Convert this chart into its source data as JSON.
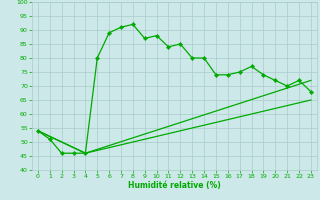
{
  "title": "",
  "xlabel": "Humidité relative (%)",
  "ylabel": "",
  "bg_color": "#cce8e8",
  "grid_color": "#aacccc",
  "line_color": "#00aa00",
  "xlim": [
    -0.5,
    23.5
  ],
  "ylim": [
    40,
    100
  ],
  "yticks": [
    40,
    45,
    50,
    55,
    60,
    65,
    70,
    75,
    80,
    85,
    90,
    95,
    100
  ],
  "xticks": [
    0,
    1,
    2,
    3,
    4,
    5,
    6,
    7,
    8,
    9,
    10,
    11,
    12,
    13,
    14,
    15,
    16,
    17,
    18,
    19,
    20,
    21,
    22,
    23
  ],
  "series_main": {
    "x": [
      0,
      1,
      2,
      3,
      4,
      5,
      6,
      7,
      8,
      9,
      10,
      11,
      12,
      13,
      14,
      15,
      16,
      17,
      18,
      19,
      20,
      21,
      22,
      23
    ],
    "y": [
      54,
      51,
      46,
      46,
      46,
      80,
      89,
      91,
      92,
      87,
      88,
      84,
      85,
      80,
      80,
      74,
      74,
      75,
      77,
      74,
      72,
      70,
      72,
      68
    ]
  },
  "series_line1": {
    "x": [
      0,
      4,
      23
    ],
    "y": [
      54,
      46,
      72
    ]
  },
  "series_line2": {
    "x": [
      0,
      4,
      23
    ],
    "y": [
      54,
      46,
      65
    ]
  }
}
